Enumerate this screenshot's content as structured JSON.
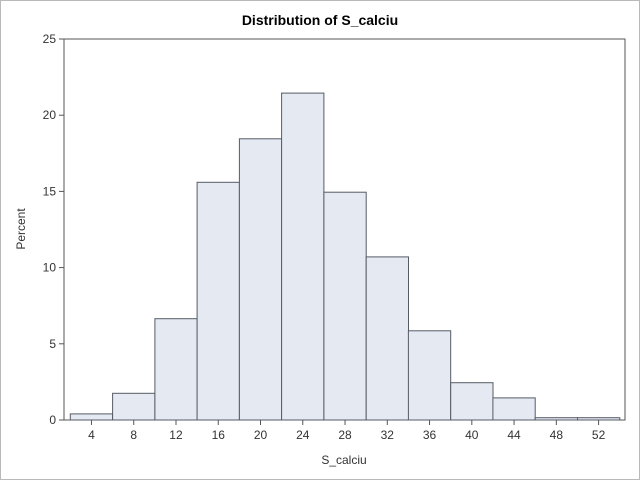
{
  "chart_data": {
    "type": "bar",
    "title": "Distribution of S_calciu",
    "xlabel": "S_calciu",
    "ylabel": "Percent",
    "bin_width": 4,
    "bin_edges": [
      2,
      6,
      10,
      14,
      18,
      22,
      26,
      30,
      34,
      38,
      42,
      46,
      50,
      54
    ],
    "values": [
      0.4,
      1.75,
      6.65,
      15.6,
      18.45,
      21.45,
      14.95,
      10.7,
      5.85,
      2.45,
      1.45,
      0.15,
      0.15
    ],
    "xticks": [
      4,
      8,
      12,
      16,
      20,
      24,
      28,
      32,
      36,
      40,
      44,
      48,
      52
    ],
    "yticks": [
      0,
      5,
      10,
      15,
      20,
      25
    ],
    "xlim": [
      1.4,
      54.5
    ],
    "ylim": [
      0,
      25
    ],
    "colors": {
      "bar_fill": "#e5e9f2",
      "bar_edge": "#555b66"
    }
  }
}
